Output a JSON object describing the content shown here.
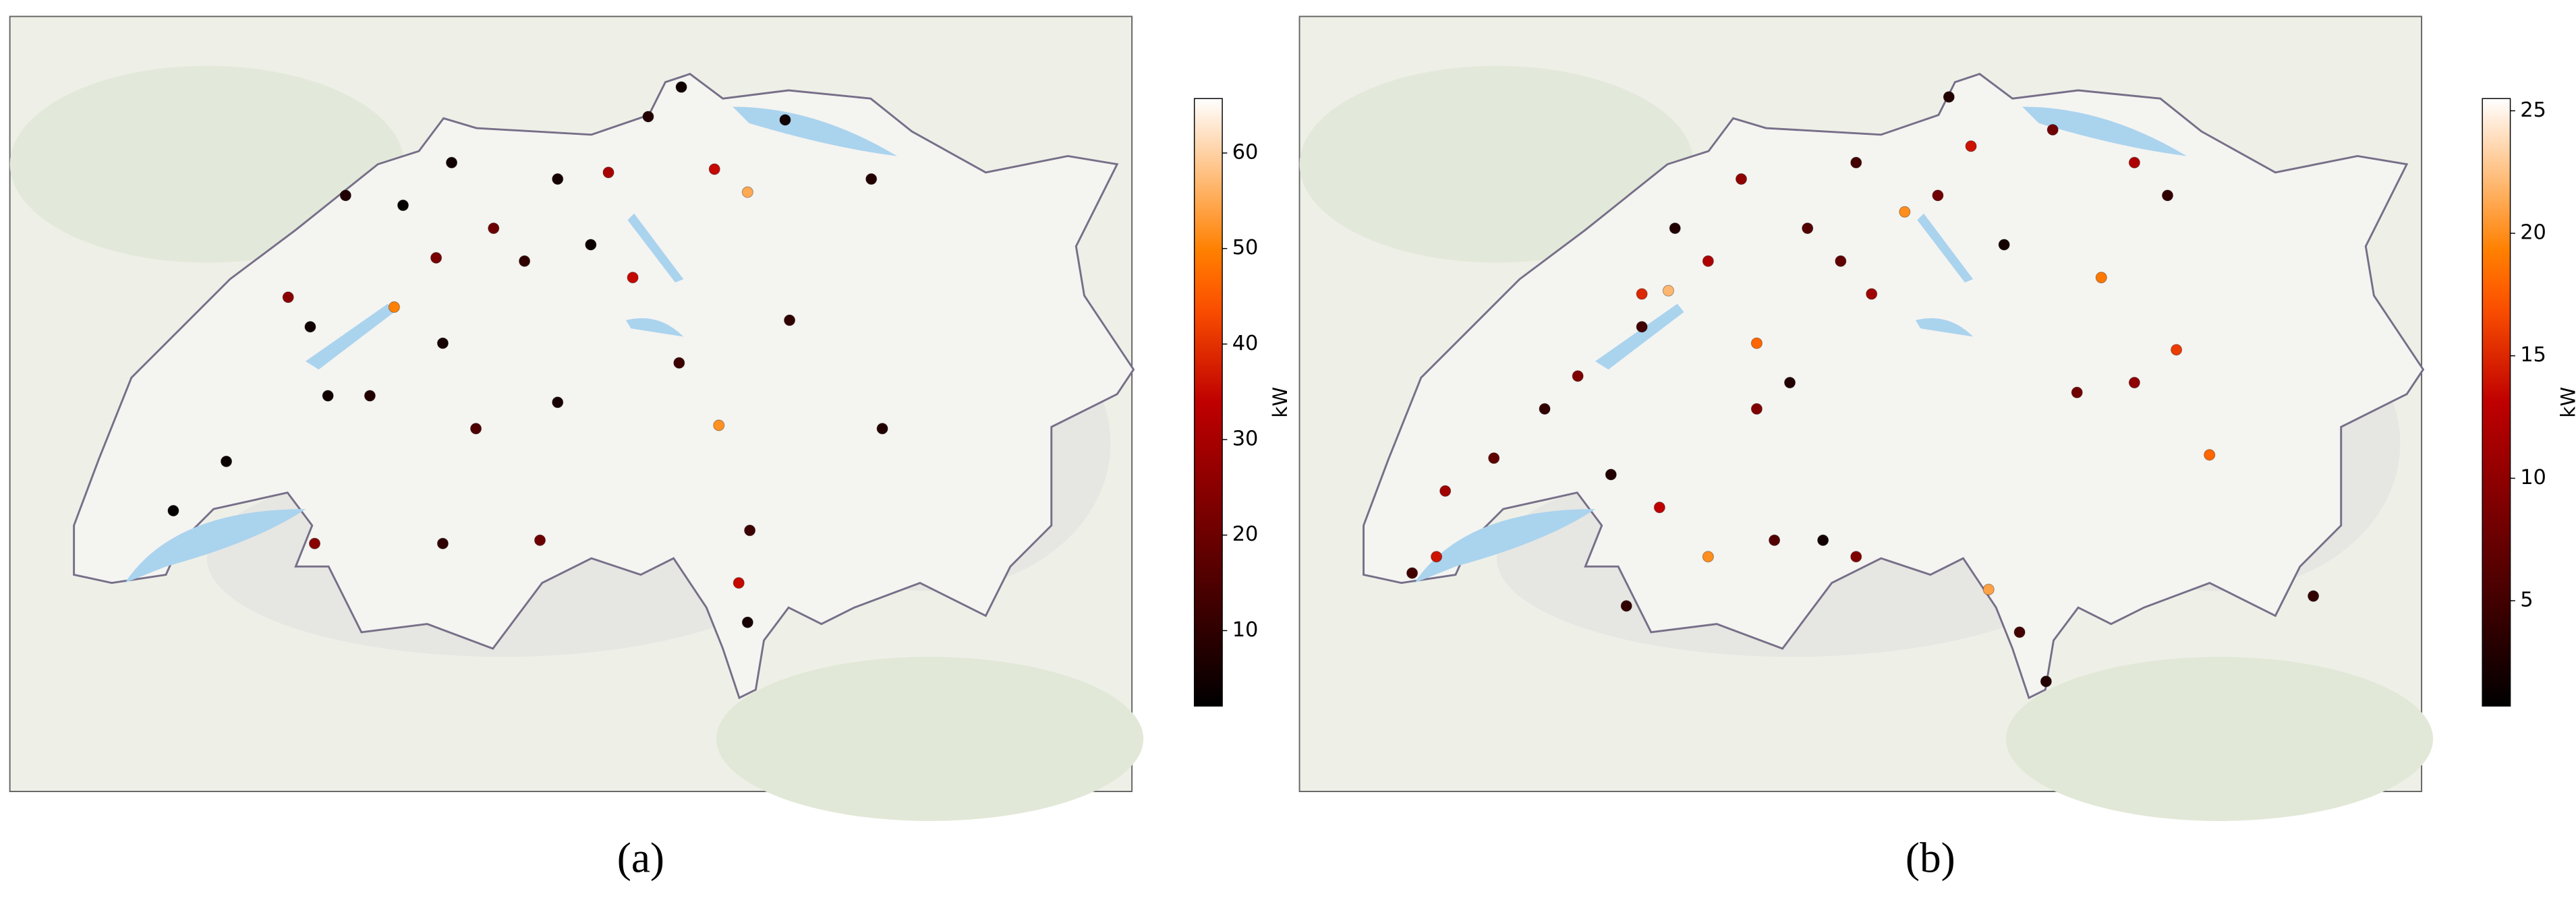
{
  "chart_data": [
    {
      "type": "scatter",
      "caption": "(a)",
      "colorbar_label": "kW",
      "colormap": "gist_heat",
      "xlim": [
        5.63,
        10.71
      ],
      "ylim": [
        45.565,
        47.925
      ],
      "clim": [
        2.1,
        65.7
      ],
      "cticks": [
        10,
        20,
        30,
        40,
        50,
        60
      ],
      "x": [
        8.67,
        8.52,
        8.97,
        8.82,
        7.63,
        7.15,
        7.41,
        7.82,
        8.11,
        8.34,
        8.45,
        8.26,
        7.96,
        7.37,
        6.89,
        6.99,
        7.56,
        7.59,
        7.26,
        7.07,
        7.74,
        8.11,
        8.84,
        8.66,
        9.16,
        9.58,
        6.37,
        6.61,
        7.01,
        7.59,
        8.03,
        8.98,
        8.93,
        8.97,
        9.53,
        9.14
      ],
      "y": [
        47.71,
        47.62,
        47.39,
        47.46,
        47.48,
        47.38,
        47.35,
        47.28,
        47.43,
        47.45,
        47.13,
        47.23,
        47.18,
        47.04,
        47.07,
        46.98,
        47.19,
        46.93,
        46.77,
        46.77,
        46.67,
        46.75,
        46.68,
        46.87,
        47.0,
        46.67,
        46.42,
        46.57,
        46.32,
        46.32,
        46.33,
        46.36,
        46.2,
        46.08,
        47.43,
        47.61
      ],
      "values": [
        5,
        8,
        55,
        35,
        5,
        8,
        3,
        20,
        6,
        30,
        35,
        4,
        10,
        50,
        25,
        5,
        22,
        6,
        8,
        5,
        15,
        6,
        52,
        12,
        10,
        8,
        3,
        4,
        25,
        10,
        20,
        12,
        35,
        6,
        8,
        5
      ]
    },
    {
      "type": "scatter",
      "caption": "(b)",
      "colorbar_label": "kW",
      "colormap": "gist_heat",
      "xlim": [
        5.63,
        10.71
      ],
      "ylim": [
        45.565,
        47.925
      ],
      "clim": [
        0.7,
        25.5
      ],
      "cticks": [
        5,
        10,
        15,
        20,
        25
      ],
      "x": [
        8.57,
        9.04,
        9.41,
        9.56,
        8.37,
        7.93,
        7.63,
        7.33,
        7.7,
        7.48,
        7.18,
        7.3,
        6.89,
        6.74,
        6.51,
        6.29,
        6.14,
        6.25,
        7.04,
        7.26,
        7.48,
        7.78,
        8.0,
        8.15,
        7.11,
        8.75,
        8.89,
        9.01,
        9.15,
        9.41,
        9.6,
        9.75,
        10.22,
        9.26,
        8.67,
        8.15,
        8.52,
        8.82,
        8.22,
        7.7,
        7.85,
        7.18,
        8.08
      ],
      "y": [
        47.68,
        47.58,
        47.48,
        47.38,
        47.33,
        47.28,
        47.43,
        47.28,
        46.93,
        47.18,
        46.98,
        47.09,
        46.83,
        46.73,
        46.58,
        46.48,
        46.23,
        46.28,
        46.53,
        46.43,
        46.28,
        46.33,
        46.33,
        46.28,
        46.13,
        46.18,
        46.05,
        45.9,
        46.78,
        46.81,
        46.91,
        46.59,
        46.16,
        47.13,
        47.53,
        47.48,
        47.38,
        47.23,
        47.08,
        46.73,
        46.81,
        47.08,
        47.18
      ],
      "values": [
        3,
        8,
        12,
        4,
        20,
        6,
        10,
        3,
        18,
        12,
        5,
        22,
        9,
        4,
        7,
        11,
        5,
        14,
        3,
        13,
        20,
        6,
        2,
        9,
        4,
        21,
        5,
        3,
        8,
        10,
        16,
        18,
        4,
        19,
        14,
        5,
        8,
        2,
        11,
        9,
        3,
        15,
        7
      ]
    }
  ]
}
